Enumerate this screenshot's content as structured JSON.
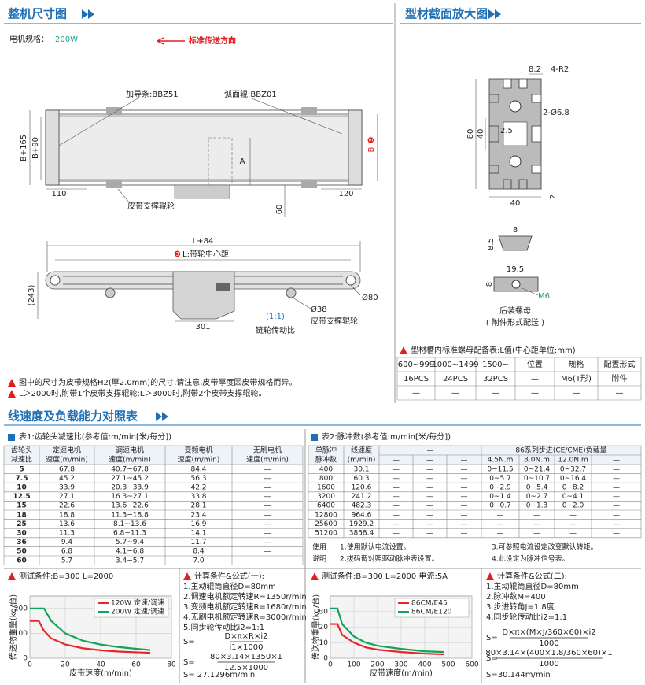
{
  "header": {
    "left_title": "整机尺寸图",
    "right_title": "型材截面放大图",
    "section2_title": "线速度及负载能力对照表"
  },
  "overall": {
    "motor_label": "电机规格：",
    "motor_value": "200W",
    "direction": "标准传送方向",
    "guide": "加导条:BBZ51",
    "roller": "弧面辊:BBZ01",
    "support_top": "皮带支撑辊轮",
    "dim_b165": "B+165",
    "dim_b90": "B+90",
    "dim_110": "110",
    "dim_120": "120",
    "dim_a": "A",
    "dim_60": "60",
    "marker_b": "❸",
    "dim_b": "B",
    "dim_l84": "L+84",
    "marker_l": "❸",
    "dim_l": "L:带轮中心距",
    "dim_243": "(243)",
    "dim_d80": "Ø80",
    "dim_301": "301",
    "ratio": "(1:1)",
    "ratio_label": "链轮传动比",
    "dim_d38": "Ø38",
    "support_side": "皮带支撑辊轮"
  },
  "notes": [
    "图中的尺寸为皮带规格H2(厚2.0mm)的尺寸,请注意,皮带厚度因皮带规格而异。",
    "L＞2000时,附带1个皮带支撑辊轮;L＞3000时,附带2个皮带支撑辊轮。"
  ],
  "profile": {
    "d82": "8.2",
    "r": "4-R2",
    "hole": "2-Ø6.8",
    "h80": "80",
    "h40": "40",
    "d25": "2.5",
    "w40": "40",
    "d2": "2"
  },
  "nut": {
    "w8": "8",
    "h85": "8.5",
    "w195": "19.5",
    "h8": "8",
    "m6": "M6",
    "name": "后装螺母",
    "note": "( 附件形式配送 )"
  },
  "nut_table": {
    "title": "型材槽内标准螺母配备表:L值(中心距单位:mm)",
    "rows": [
      [
        "600~999",
        "1000~1499",
        "1500~",
        "位置",
        "规格",
        "配置形式"
      ],
      [
        "16PCS",
        "24PCS",
        "32PCS",
        "—",
        "M6(T形)",
        "附件"
      ],
      [
        "—",
        "—",
        "—",
        "—",
        "—",
        "—"
      ]
    ]
  },
  "table1": {
    "title": "表1:齿轮头减速比(参考值:m/min[米/每分])",
    "header": [
      [
        "齿轮头",
        "减速比"
      ],
      [
        "定速电机",
        "速度(m/min)"
      ],
      [
        "调速电机",
        "速度(m/min)"
      ],
      [
        "变频电机",
        "速度(m/min)"
      ],
      [
        "无刷电机",
        "速度(m/min)"
      ]
    ],
    "rows": [
      [
        "5",
        "67.8",
        "40.7~67.8",
        "84.4",
        "—"
      ],
      [
        "7.5",
        "45.2",
        "27.1~45.2",
        "56.3",
        "—"
      ],
      [
        "10",
        "33.9",
        "20.3~33.9",
        "42.2",
        "—"
      ],
      [
        "12.5",
        "27.1",
        "16.3~27.1",
        "33.8",
        "—"
      ],
      [
        "15",
        "22.6",
        "13.6~22.6",
        "28.1",
        "—"
      ],
      [
        "18",
        "18.8",
        "11.3~18.8",
        "23.4",
        "—"
      ],
      [
        "25",
        "13.6",
        "8.1~13.6",
        "16.9",
        "—"
      ],
      [
        "30",
        "11.3",
        "6.8~11.3",
        "14.1",
        "—"
      ],
      [
        "36",
        "9.4",
        "5.7~9.4",
        "11.7",
        "—"
      ],
      [
        "50",
        "6.8",
        "4.1~6.8",
        "8.4",
        "—"
      ],
      [
        "60",
        "5.7",
        "3.4~5.7",
        "7.0",
        "—"
      ]
    ]
  },
  "table2": {
    "title": "表2:脉冲数(参考值:m/min[米/每分])",
    "header_top": [
      "单脉冲",
      "线速度",
      "—",
      "86系列步进(CE/CME)负载量"
    ],
    "header_sub": [
      "脉冲数",
      "(m/min)",
      "—",
      "—",
      "—",
      "4.5N.m",
      "8.0N.m",
      "12.0N.m",
      "—"
    ],
    "rows": [
      [
        "400",
        "30.1",
        "—",
        "—",
        "—",
        "0~11.5",
        "0~21.4",
        "0~32.7",
        "—"
      ],
      [
        "800",
        "60.3",
        "—",
        "—",
        "—",
        "0~5.7",
        "0~10.7",
        "0~16.4",
        "—"
      ],
      [
        "1600",
        "120.6",
        "—",
        "—",
        "—",
        "0~2.9",
        "0~5.4",
        "0~8.2",
        "—"
      ],
      [
        "3200",
        "241.2",
        "—",
        "—",
        "—",
        "0~1.4",
        "0~2.7",
        "0~4.1",
        "—"
      ],
      [
        "6400",
        "482.3",
        "—",
        "—",
        "—",
        "0~0.7",
        "0~1.3",
        "0~2.0",
        "—"
      ],
      [
        "12800",
        "964.6",
        "—",
        "—",
        "—",
        "—",
        "—",
        "—",
        "—"
      ],
      [
        "25600",
        "1929.2",
        "—",
        "—",
        "—",
        "—",
        "—",
        "—",
        "—"
      ],
      [
        "51200",
        "3858.4",
        "—",
        "—",
        "—",
        "—",
        "—",
        "—",
        "—"
      ]
    ],
    "usage_label": "使用",
    "usage_label2": "说明",
    "usage": [
      "1.使用默认电流设置。",
      "2.拔码调对照驱动脉冲表设置。",
      "3.可参照电流设定改变默认转矩。",
      "4.此设定为脉冲信号表。"
    ]
  },
  "formula1": {
    "title": "计算条件&公式(一):",
    "lines": [
      "1.主动辊筒直径D=80mm",
      "2.调速电机额定转速R=1350r/min",
      "3.变频电机额定转速R=1680r/min",
      "4.无刷电机额定转速R=3000r/min",
      "5.同步轮传动比i2=1:1"
    ],
    "eq": [
      {
        "lhs": "S=",
        "num": "D×π×R×i2",
        "den": "i1×1000"
      },
      {
        "lhs": "S=",
        "num": "80×3.14×1350×1",
        "den": "12.5×1000"
      }
    ],
    "result": "S= 27.1296m/min"
  },
  "formula2": {
    "title": "计算条件&公式(二):",
    "lines": [
      "1.主动辊筒直径D=80mm",
      "2.脉冲数M=400",
      "3.步进转角J=1.8度",
      "4.同步轮传动比i2=1:1"
    ],
    "eq": [
      {
        "lhs": "S=",
        "num": "D×π×(M×J/360×60)×i2",
        "den": "1000"
      },
      {
        "lhs": "S=",
        "num": "80×3.14×(400×1.8/360×60)×1",
        "den": "1000"
      }
    ],
    "result": "S=30.144m/min"
  },
  "chart_data": [
    {
      "type": "line",
      "title": "测试条件:B=300  L=2000",
      "x_label": "皮带速度(m/min)",
      "y_label": "传送物重量(kg/台)",
      "xlim": [
        0,
        80
      ],
      "xticks": [
        0,
        20,
        40,
        60,
        80
      ],
      "ylim": [
        0,
        250
      ],
      "yticks": [
        0,
        100,
        200
      ],
      "grid": true,
      "series": [
        {
          "name": "120W 定速/调速",
          "color": "#e8262a",
          "x": [
            0,
            5,
            8,
            12,
            20,
            30,
            40,
            50,
            60,
            68
          ],
          "values": [
            150,
            150,
            110,
            80,
            55,
            40,
            32,
            27,
            24,
            22
          ]
        },
        {
          "name": "200W 定速/调速",
          "color": "#12a35a",
          "x": [
            0,
            8,
            12,
            20,
            30,
            40,
            50,
            60,
            68
          ],
          "values": [
            200,
            200,
            150,
            100,
            70,
            55,
            45,
            38,
            33
          ]
        }
      ]
    },
    {
      "type": "line",
      "title": "测试条件:B=300  L=2000  电流:5A",
      "x_label": "皮带速度(m/min)",
      "y_label": "传送物重量(kg/台)",
      "xlim": [
        0,
        600
      ],
      "xticks": [
        0,
        100,
        200,
        300,
        400,
        500,
        600
      ],
      "ylim": [
        0,
        40
      ],
      "yticks": [
        0,
        10,
        20,
        30
      ],
      "grid": true,
      "series": [
        {
          "name": "86CM/E45",
          "color": "#e8262a",
          "x": [
            0,
            30,
            50,
            100,
            150,
            200,
            300,
            400,
            480
          ],
          "values": [
            22,
            22,
            15,
            10,
            7,
            5.5,
            4,
            3,
            2.5
          ]
        },
        {
          "name": "86CM/E120",
          "color": "#12a35a",
          "x": [
            0,
            30,
            50,
            100,
            150,
            200,
            300,
            400,
            480
          ],
          "values": [
            32,
            32,
            22,
            14,
            10,
            8,
            6,
            4.5,
            4
          ]
        }
      ]
    }
  ]
}
